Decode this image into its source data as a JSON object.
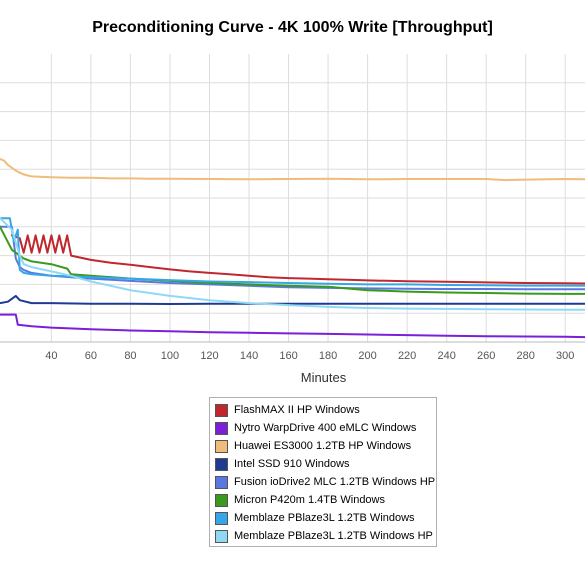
{
  "chart_data": {
    "type": "line",
    "title": "Preconditioning Curve - 4K 100% Write [Throughput]",
    "xlabel": "Minutes",
    "ylabel": "",
    "x_ticks": [
      40,
      60,
      80,
      100,
      120,
      140,
      160,
      180,
      200,
      220,
      240,
      260,
      280,
      300
    ],
    "xlim": [
      14,
      310
    ],
    "ylim": [
      0,
      10
    ],
    "y_gridlines": [
      1,
      2,
      3,
      4,
      5,
      6,
      7,
      8,
      9
    ],
    "grid": true,
    "legend_position": "bottom-center",
    "series": [
      {
        "name": "FlashMAX II HP Windows",
        "color": "#c0282d",
        "x": [
          20,
          24,
          26,
          28,
          30,
          32,
          34,
          36,
          38,
          40,
          42,
          44,
          46,
          48,
          50,
          60,
          70,
          80,
          90,
          100,
          110,
          120,
          130,
          140,
          150,
          160,
          170,
          180,
          190,
          200,
          220,
          240,
          260,
          280,
          300,
          310
        ],
        "y": [
          3.7,
          3.6,
          3.1,
          3.7,
          3.1,
          3.7,
          3.1,
          3.7,
          3.1,
          3.7,
          3.1,
          3.7,
          3.1,
          3.7,
          3.0,
          2.85,
          2.75,
          2.68,
          2.6,
          2.52,
          2.45,
          2.4,
          2.35,
          2.3,
          2.25,
          2.22,
          2.2,
          2.18,
          2.16,
          2.14,
          2.11,
          2.09,
          2.07,
          2.05,
          2.04,
          2.03
        ]
      },
      {
        "name": "Nytro WarpDrive 400 eMLC Windows",
        "color": "#7b1fd9",
        "x": [
          14,
          20,
          22,
          23,
          30,
          40,
          60,
          80,
          100,
          120,
          140,
          160,
          180,
          200,
          220,
          240,
          260,
          280,
          300,
          310
        ],
        "y": [
          0.95,
          0.95,
          0.95,
          0.6,
          0.55,
          0.5,
          0.44,
          0.4,
          0.37,
          0.34,
          0.32,
          0.3,
          0.28,
          0.26,
          0.24,
          0.22,
          0.2,
          0.19,
          0.18,
          0.17
        ]
      },
      {
        "name": "Huawei ES3000 1.2TB HP Windows",
        "color": "#f0bc7a",
        "x": [
          14,
          16,
          18,
          20,
          22,
          24,
          26,
          28,
          30,
          40,
          50,
          60,
          70,
          80,
          90,
          100,
          120,
          140,
          160,
          180,
          200,
          220,
          240,
          260,
          270,
          280,
          300,
          310
        ],
        "y": [
          6.35,
          6.3,
          6.15,
          6.05,
          5.95,
          5.88,
          5.82,
          5.78,
          5.75,
          5.72,
          5.7,
          5.7,
          5.68,
          5.68,
          5.67,
          5.67,
          5.66,
          5.65,
          5.66,
          5.67,
          5.65,
          5.66,
          5.66,
          5.66,
          5.62,
          5.64,
          5.66,
          5.65
        ]
      },
      {
        "name": "Intel SSD 910 Windows",
        "color": "#1f3a93",
        "x": [
          14,
          18,
          22,
          24,
          30,
          40,
          60,
          80,
          100,
          120,
          140,
          160,
          180,
          200,
          220,
          240,
          260,
          280,
          300,
          310
        ],
        "y": [
          1.35,
          1.4,
          1.6,
          1.45,
          1.35,
          1.35,
          1.33,
          1.33,
          1.32,
          1.33,
          1.33,
          1.33,
          1.33,
          1.33,
          1.33,
          1.33,
          1.33,
          1.33,
          1.33,
          1.33
        ]
      },
      {
        "name": "Fusion ioDrive2 MLC 1.2TB Windows HP",
        "color": "#5a78e0",
        "x": [
          14,
          20,
          22,
          24,
          26,
          30,
          40,
          50,
          60,
          80,
          100,
          120,
          140,
          160,
          180,
          200,
          220,
          240,
          260,
          280,
          300,
          310
        ],
        "y": [
          4.0,
          4.0,
          2.9,
          2.6,
          2.5,
          2.4,
          2.3,
          2.25,
          2.2,
          2.12,
          2.05,
          2.0,
          1.95,
          1.9,
          1.88,
          1.86,
          1.85,
          1.84,
          1.84,
          1.83,
          1.83,
          1.83
        ]
      },
      {
        "name": "Micron P420m 1.4TB Windows",
        "color": "#3a9a1e",
        "x": [
          14,
          20,
          26,
          30,
          40,
          48,
          50,
          60,
          80,
          100,
          120,
          140,
          160,
          180,
          200,
          220,
          240,
          260,
          280,
          300,
          310
        ],
        "y": [
          4.0,
          3.2,
          2.9,
          2.8,
          2.7,
          2.55,
          2.35,
          2.3,
          2.2,
          2.12,
          2.05,
          2.0,
          1.95,
          1.92,
          1.8,
          1.75,
          1.72,
          1.7,
          1.68,
          1.67,
          1.67
        ]
      },
      {
        "name": "Memblaze PBlaze3L 1.2TB Windows",
        "color": "#35a7e6",
        "x": [
          14,
          19,
          21,
          23,
          24,
          26,
          30,
          40,
          50,
          60,
          80,
          100,
          120,
          140,
          160,
          180,
          200,
          220,
          240,
          260,
          280,
          300,
          310
        ],
        "y": [
          4.3,
          4.3,
          3.5,
          3.9,
          2.5,
          2.4,
          2.35,
          2.3,
          2.28,
          2.25,
          2.2,
          2.15,
          2.1,
          2.08,
          2.05,
          2.02,
          2.0,
          2.0,
          1.98,
          1.97,
          1.96,
          1.96,
          1.95
        ]
      },
      {
        "name": "Memblaze PBlaze3L 1.2TB Windows HP",
        "color": "#8fd9f5",
        "x": [
          14,
          20,
          24,
          26,
          30,
          40,
          50,
          60,
          70,
          80,
          100,
          120,
          140,
          160,
          180,
          200,
          220,
          240,
          260,
          280,
          300,
          310
        ],
        "y": [
          4.3,
          3.9,
          3.0,
          2.7,
          2.6,
          2.45,
          2.3,
          2.1,
          1.95,
          1.8,
          1.6,
          1.45,
          1.35,
          1.28,
          1.22,
          1.18,
          1.16,
          1.15,
          1.14,
          1.13,
          1.12,
          1.12
        ]
      }
    ]
  }
}
